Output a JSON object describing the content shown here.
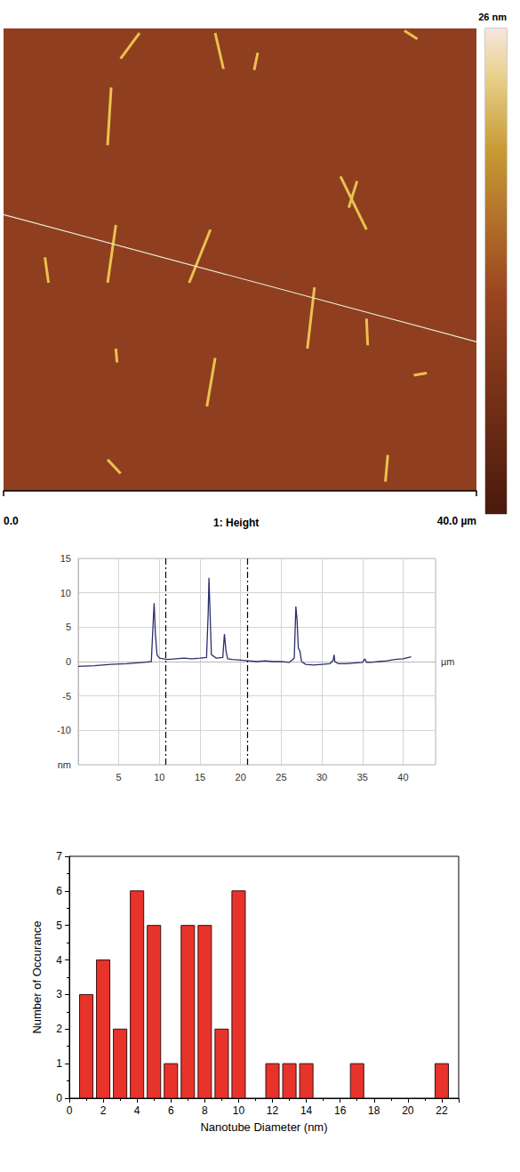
{
  "chart_data": [
    {
      "type": "image",
      "title": "1: Height",
      "xlim": [
        0,
        40
      ],
      "xticks": [
        {
          "value": 0,
          "label": "0.0"
        },
        {
          "value": 40,
          "label": "40.0 µm"
        }
      ],
      "ylim": [
        0,
        40
      ],
      "tick_labels": "x",
      "colorbar": {
        "range": [
          0,
          26
        ],
        "ticks": [
          {
            "value": 26,
            "label": "26 nm"
          }
        ]
      },
      "scan_line": [
        [
          0,
          23.9
        ],
        [
          40,
          12.9
        ]
      ],
      "features": [
        [
          [
            11.5,
            39.6
          ],
          [
            9.9,
            37.4
          ]
        ],
        [
          [
            17.9,
            39.6
          ],
          [
            18.6,
            36.5
          ]
        ],
        [
          [
            21.5,
            37.9
          ],
          [
            21.2,
            36.4
          ]
        ],
        [
          [
            9.1,
            34.9
          ],
          [
            8.8,
            29.9
          ]
        ],
        [
          [
            28.5,
            27.2
          ],
          [
            30.7,
            22.6
          ]
        ],
        [
          [
            29.9,
            26.8
          ],
          [
            29.2,
            24.5
          ]
        ],
        [
          [
            9.5,
            23.0
          ],
          [
            8.8,
            18.0
          ]
        ],
        [
          [
            17.5,
            22.6
          ],
          [
            15.7,
            18.0
          ]
        ],
        [
          [
            3.5,
            20.2
          ],
          [
            3.8,
            18.0
          ]
        ],
        [
          [
            26.3,
            17.6
          ],
          [
            25.7,
            12.3
          ]
        ],
        [
          [
            30.7,
            14.9
          ],
          [
            30.8,
            12.6
          ]
        ],
        [
          [
            17.9,
            11.5
          ],
          [
            17.2,
            7.3
          ]
        ],
        [
          [
            9.5,
            12.3
          ],
          [
            9.6,
            11.1
          ]
        ],
        [
          [
            32.5,
            3.1
          ],
          [
            32.3,
            0.8
          ]
        ],
        [
          [
            8.8,
            2.7
          ],
          [
            9.9,
            1.5
          ]
        ],
        [
          [
            34.7,
            10.0
          ],
          [
            35.8,
            10.2
          ]
        ],
        [
          [
            33.9,
            39.8
          ],
          [
            35.0,
            39.1
          ]
        ]
      ]
    },
    {
      "type": "line",
      "xlabel": "µm",
      "x": [
        0,
        2,
        4,
        6,
        8,
        9.0,
        9.2,
        9.35,
        9.5,
        9.7,
        10,
        11,
        12,
        13,
        14,
        15,
        15.8,
        16.0,
        16.1,
        16.25,
        16.4,
        17,
        17.8,
        18.0,
        18.2,
        18.4,
        19,
        20,
        21,
        22,
        23,
        24,
        25,
        26,
        26.6,
        26.8,
        26.95,
        27.1,
        27.3,
        27.5,
        28,
        29,
        30,
        31,
        31.4,
        31.5,
        31.6,
        32,
        33,
        34,
        35,
        35.3,
        35.5,
        36,
        37,
        38,
        39,
        40,
        41
      ],
      "values": [
        -0.7,
        -0.6,
        -0.4,
        -0.3,
        -0.1,
        0.0,
        5.0,
        8.5,
        4.0,
        1.0,
        0.5,
        0.3,
        0.4,
        0.5,
        0.4,
        0.5,
        0.6,
        7.0,
        12.2,
        6.5,
        1.0,
        0.5,
        0.6,
        4.0,
        1.5,
        0.4,
        0.3,
        0.2,
        0.1,
        0.0,
        0.1,
        0.0,
        0.0,
        -0.1,
        0.5,
        8.0,
        6.0,
        2.0,
        1.5,
        0.0,
        -0.4,
        -0.5,
        -0.4,
        -0.3,
        0.2,
        1.0,
        0.0,
        -0.3,
        -0.3,
        -0.2,
        -0.1,
        0.4,
        -0.1,
        -0.1,
        0.0,
        0.1,
        0.3,
        0.4,
        0.7
      ],
      "color": "#2b2f6b",
      "cursor_lines": [
        10.8,
        20.8
      ],
      "xlim": [
        0,
        44
      ],
      "xticks": [
        5,
        10,
        15,
        20,
        25,
        30,
        35,
        40
      ],
      "ylim": [
        -15,
        15
      ],
      "yticks": [
        {
          "value": -15,
          "label": "nm"
        },
        -10,
        -5,
        0,
        5,
        10,
        15
      ],
      "grid": true
    },
    {
      "type": "histogram",
      "xlabel": "Nanotube Diameter (nm)",
      "ylabel": "Number of Occurance",
      "bins": [
        0.5,
        1.5,
        2.5,
        3.5,
        4.5,
        5.5,
        6.5,
        7.5,
        8.5,
        9.5,
        10.5,
        11.5,
        12.5,
        13.5,
        14.5,
        15.5,
        16.5,
        17.5,
        18.5,
        19.5,
        20.5,
        21.5,
        22.5
      ],
      "values": [
        3,
        4,
        2,
        6,
        5,
        1,
        5,
        5,
        2,
        6,
        0,
        1,
        1,
        1,
        0,
        0,
        1,
        0,
        0,
        0,
        0,
        1
      ],
      "color": "#e8332b",
      "xlim": [
        0,
        23
      ],
      "xticks": [
        0,
        2,
        4,
        6,
        8,
        10,
        12,
        14,
        16,
        18,
        20,
        22
      ],
      "ylim": [
        0,
        7
      ],
      "yticks": [
        0,
        1,
        2,
        3,
        4,
        5,
        6,
        7
      ],
      "grid": false
    }
  ]
}
